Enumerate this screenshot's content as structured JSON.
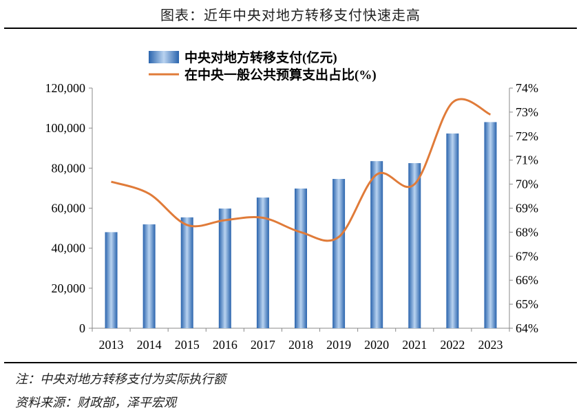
{
  "title": "图表：近年中央对地方转移支付快速走高",
  "note": "注：中央对地方转移支付为实际执行额",
  "source": "资料来源：财政部，泽平宏观",
  "chart_data": {
    "type": "bar+line",
    "categories": [
      "2013",
      "2014",
      "2015",
      "2016",
      "2017",
      "2018",
      "2019",
      "2020",
      "2021",
      "2022",
      "2023"
    ],
    "series": [
      {
        "name": "中央对地方转移支付(亿元)",
        "type": "bar",
        "axis": "left",
        "color": "#2e6fb8",
        "values": [
          48000,
          51900,
          55400,
          59800,
          65300,
          69800,
          74600,
          83500,
          82500,
          97300,
          103000
        ]
      },
      {
        "name": "在中央一般公共预算支出占比(%)",
        "type": "line",
        "axis": "right",
        "color": "#e07b39",
        "values": [
          70.1,
          69.6,
          68.3,
          68.5,
          68.6,
          68.0,
          67.8,
          70.4,
          70.0,
          73.4,
          72.9
        ]
      }
    ],
    "left_axis": {
      "ylim": [
        0,
        120000
      ],
      "ticks": [
        "0",
        "20,000",
        "40,000",
        "60,000",
        "80,000",
        "100,000",
        "120,000"
      ]
    },
    "right_axis": {
      "ylim": [
        64,
        74
      ],
      "ticks": [
        "64%",
        "65%",
        "66%",
        "67%",
        "68%",
        "69%",
        "70%",
        "71%",
        "72%",
        "73%",
        "74%"
      ]
    },
    "legend_position": "top-center",
    "grid": false
  }
}
